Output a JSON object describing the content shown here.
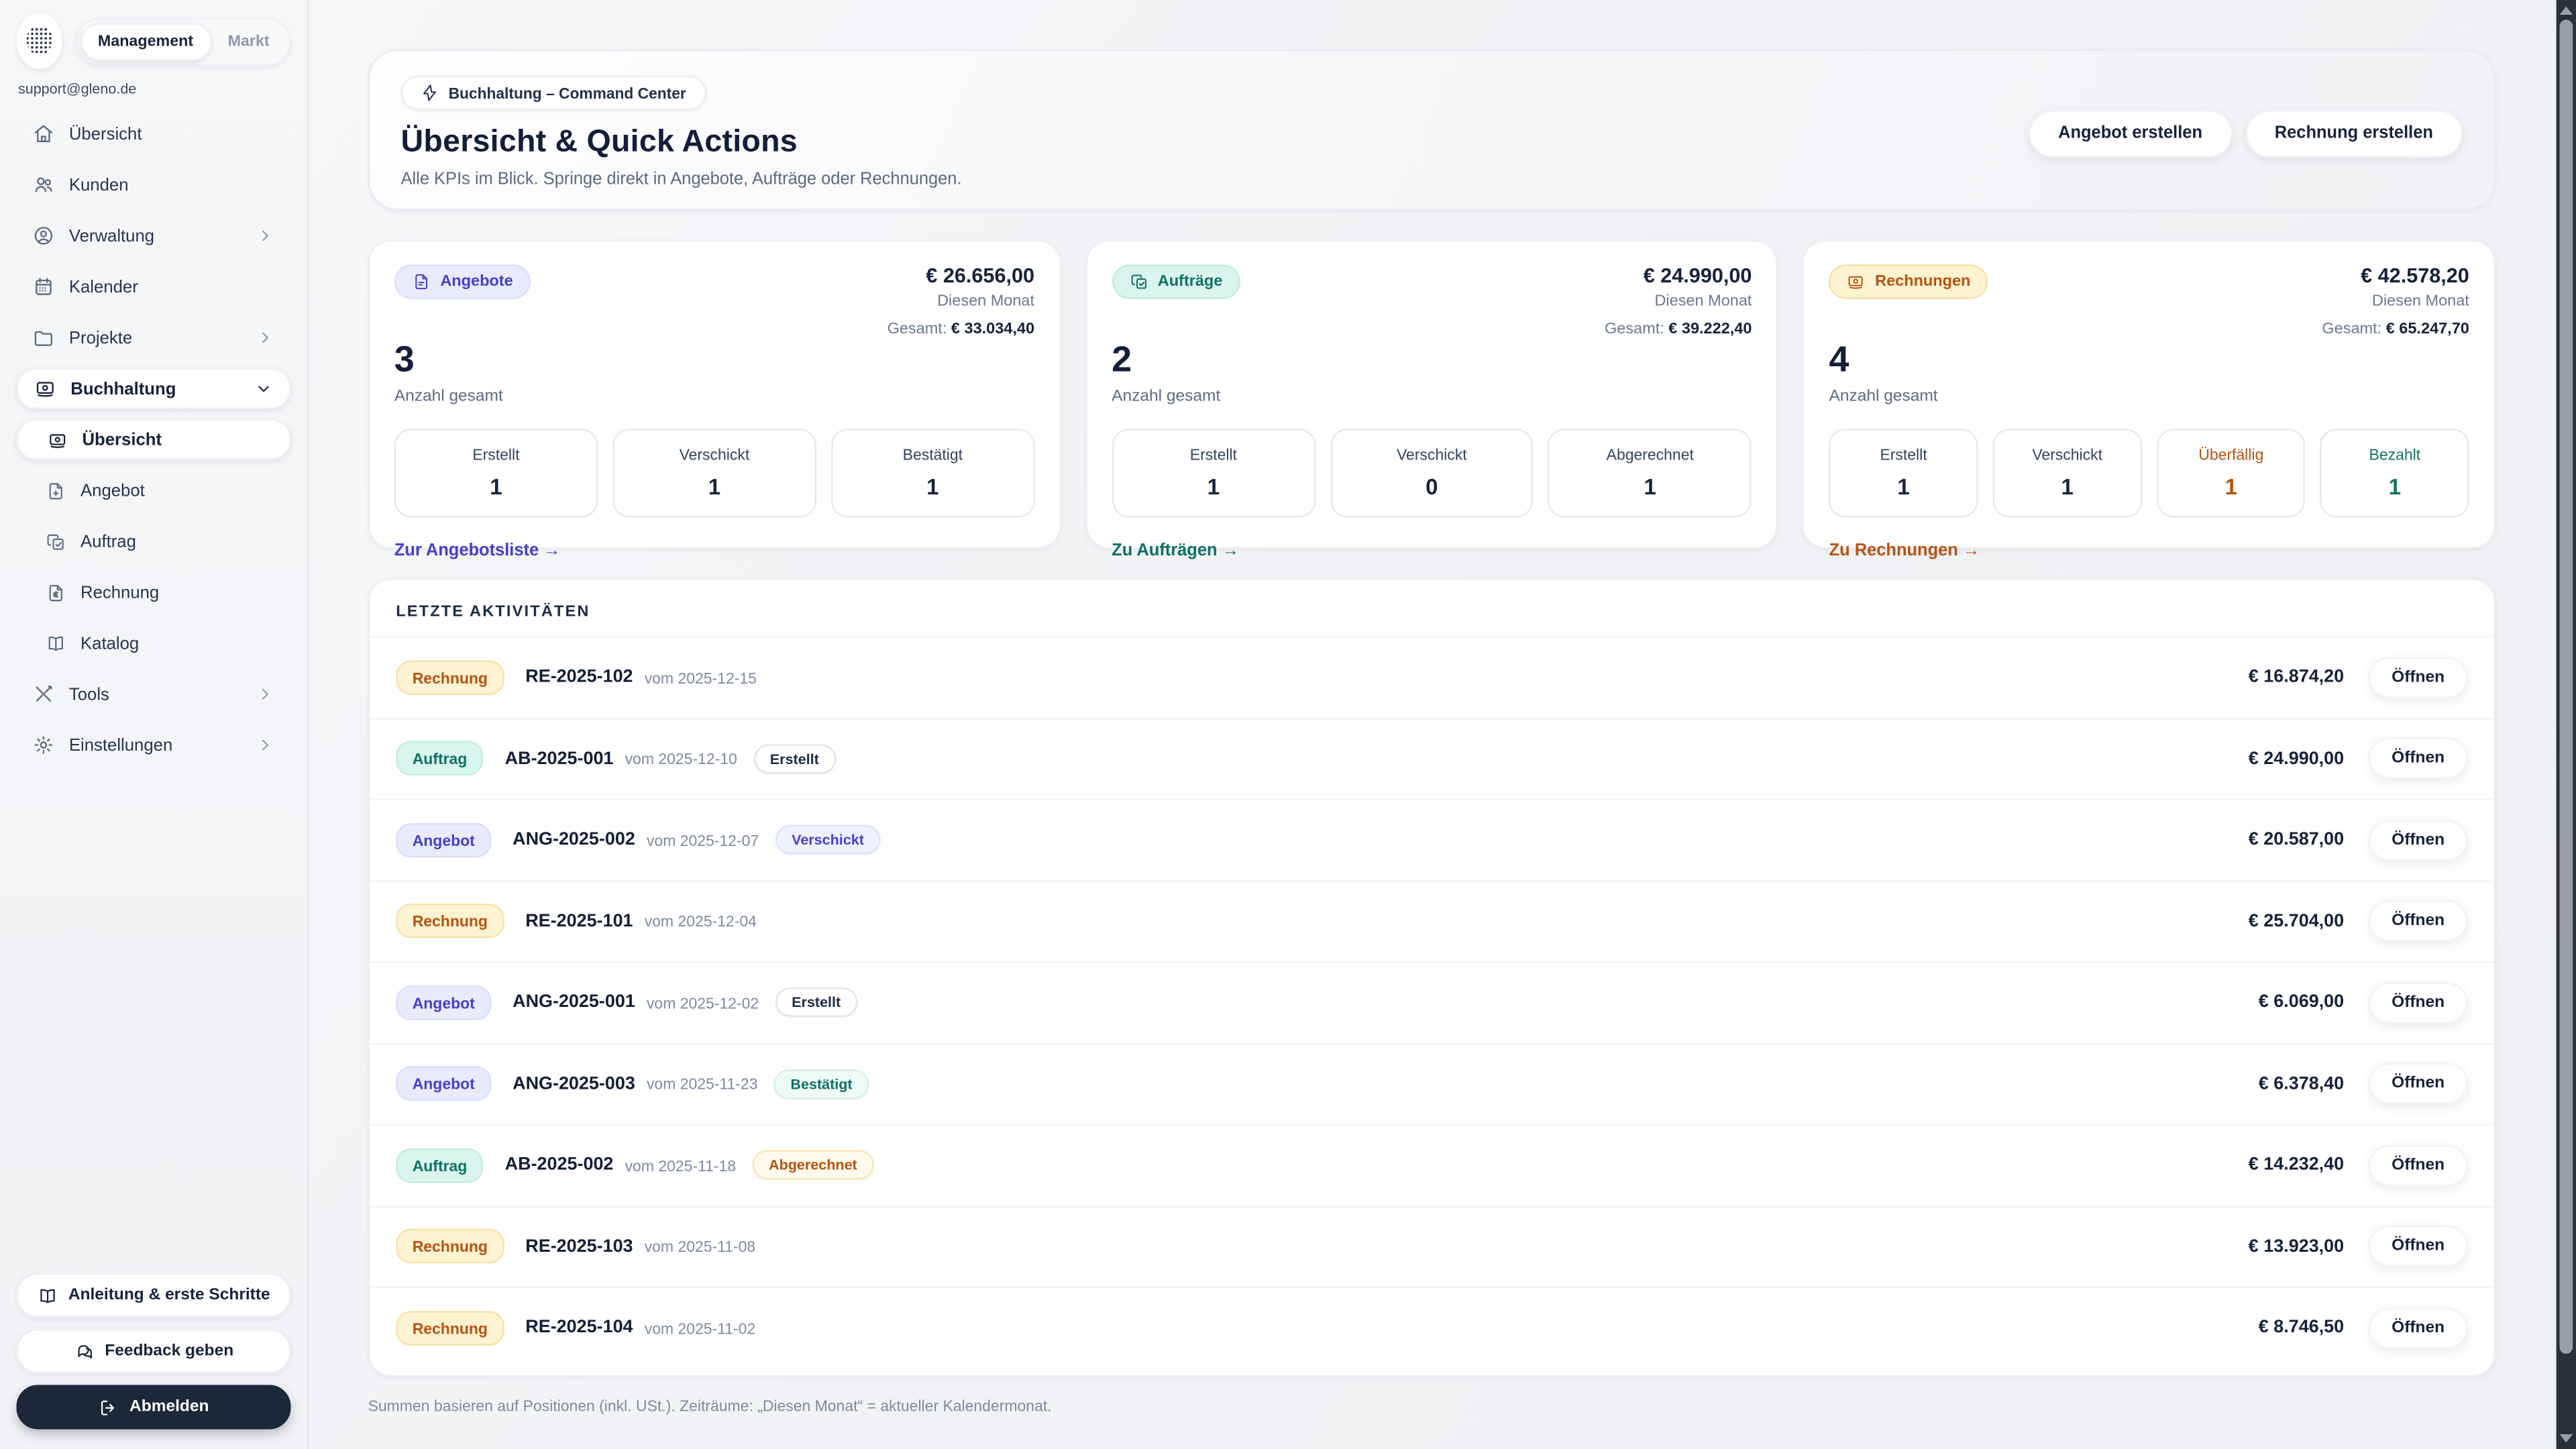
{
  "sidebar": {
    "tabs": [
      {
        "label": "Management",
        "active": true
      },
      {
        "label": "Markt",
        "active": false
      }
    ],
    "email": "support@gleno.de",
    "nav": [
      {
        "label": "Übersicht",
        "icon": "home-icon"
      },
      {
        "label": "Kunden",
        "icon": "users-icon"
      },
      {
        "label": "Verwaltung",
        "icon": "user-circle-icon",
        "chevron": "right"
      },
      {
        "label": "Kalender",
        "icon": "calendar-icon"
      },
      {
        "label": "Projekte",
        "icon": "folder-icon",
        "chevron": "right"
      },
      {
        "label": "Buchhaltung",
        "icon": "banknote-icon",
        "chevron": "down",
        "active": true
      }
    ],
    "subnav": [
      {
        "label": "Übersicht",
        "icon": "banknote-icon",
        "active": true
      },
      {
        "label": "Angebot",
        "icon": "file-plus-icon"
      },
      {
        "label": "Auftrag",
        "icon": "clipboard-check-icon"
      },
      {
        "label": "Rechnung",
        "icon": "file-euro-icon"
      },
      {
        "label": "Katalog",
        "icon": "book-icon"
      }
    ],
    "nav_after": [
      {
        "label": "Tools",
        "icon": "tools-icon",
        "chevron": "right"
      },
      {
        "label": "Einstellungen",
        "icon": "gear-icon",
        "chevron": "right"
      }
    ],
    "footer": [
      {
        "label": "Anleitung & erste Schritte",
        "icon": "book-open-icon",
        "style": "light"
      },
      {
        "label": "Feedback geben",
        "icon": "chat-icon",
        "style": "light"
      },
      {
        "label": "Abmelden",
        "icon": "logout-icon",
        "style": "dark"
      }
    ]
  },
  "header": {
    "badge_label": "Buchhaltung – Command Center",
    "badge_icon": "lightning-icon",
    "title": "Übersicht & Quick Actions",
    "subtitle": "Alle KPIs im Blick. Springe direkt in Angebote, Aufträge oder Rechnungen.",
    "actions": [
      {
        "label": "Angebot erstellen"
      },
      {
        "label": "Rechnung erstellen"
      }
    ]
  },
  "kpi_cards": [
    {
      "label": "Angebote",
      "icon": "file-text-icon",
      "theme": "indigo",
      "month_amount": "€ 26.656,00",
      "month_label": "Diesen Monat",
      "total_label": "Gesamt:",
      "total_amount": "€ 33.034,40",
      "count": "3",
      "count_label": "Anzahl gesamt",
      "stats": [
        {
          "label": "Erstellt",
          "value": "1"
        },
        {
          "label": "Verschickt",
          "value": "1"
        },
        {
          "label": "Bestätigt",
          "value": "1"
        }
      ],
      "link": "Zur Angebotsliste →"
    },
    {
      "label": "Aufträge",
      "icon": "clipboard-check-icon",
      "theme": "teal",
      "month_amount": "€ 24.990,00",
      "month_label": "Diesen Monat",
      "total_label": "Gesamt:",
      "total_amount": "€ 39.222,40",
      "count": "2",
      "count_label": "Anzahl gesamt",
      "stats": [
        {
          "label": "Erstellt",
          "value": "1"
        },
        {
          "label": "Verschickt",
          "value": "0"
        },
        {
          "label": "Abgerechnet",
          "value": "1"
        }
      ],
      "link": "Zu Aufträgen →"
    },
    {
      "label": "Rechnungen",
      "icon": "banknote-icon",
      "theme": "amber",
      "month_amount": "€ 42.578,20",
      "month_label": "Diesen Monat",
      "total_label": "Gesamt:",
      "total_amount": "€ 65.247,70",
      "count": "4",
      "count_label": "Anzahl gesamt",
      "stats": [
        {
          "label": "Erstellt",
          "value": "1"
        },
        {
          "label": "Verschickt",
          "value": "1"
        },
        {
          "label": "Überfällig",
          "value": "1",
          "theme": "amber"
        },
        {
          "label": "Bezahlt",
          "value": "1",
          "theme": "teal"
        }
      ],
      "link": "Zu Rechnungen →"
    }
  ],
  "activities": {
    "title": "LETZTE AKTIVITÄTEN",
    "open_label": "Öffnen",
    "rows": [
      {
        "type": "Rechnung",
        "theme": "amber",
        "id": "RE-2025-102",
        "date": "vom 2025-12-15",
        "status": null,
        "status_theme": null,
        "amount": "€ 16.874,20"
      },
      {
        "type": "Auftrag",
        "theme": "teal",
        "id": "AB-2025-001",
        "date": "vom 2025-12-10",
        "status": "Erstellt",
        "status_theme": "gray",
        "amount": "€ 24.990,00"
      },
      {
        "type": "Angebot",
        "theme": "indigo",
        "id": "ANG-2025-002",
        "date": "vom 2025-12-07",
        "status": "Verschickt",
        "status_theme": "indigo",
        "amount": "€ 20.587,00"
      },
      {
        "type": "Rechnung",
        "theme": "amber",
        "id": "RE-2025-101",
        "date": "vom 2025-12-04",
        "status": null,
        "status_theme": null,
        "amount": "€ 25.704,00"
      },
      {
        "type": "Angebot",
        "theme": "indigo",
        "id": "ANG-2025-001",
        "date": "vom 2025-12-02",
        "status": "Erstellt",
        "status_theme": "gray",
        "amount": "€ 6.069,00"
      },
      {
        "type": "Angebot",
        "theme": "indigo",
        "id": "ANG-2025-003",
        "date": "vom 2025-11-23",
        "status": "Bestätigt",
        "status_theme": "teal",
        "amount": "€ 6.378,40"
      },
      {
        "type": "Auftrag",
        "theme": "teal",
        "id": "AB-2025-002",
        "date": "vom 2025-11-18",
        "status": "Abgerechnet",
        "status_theme": "amber",
        "amount": "€ 14.232,40"
      },
      {
        "type": "Rechnung",
        "theme": "amber",
        "id": "RE-2025-103",
        "date": "vom 2025-11-08",
        "status": null,
        "status_theme": null,
        "amount": "€ 13.923,00"
      },
      {
        "type": "Rechnung",
        "theme": "amber",
        "id": "RE-2025-104",
        "date": "vom 2025-11-02",
        "status": null,
        "status_theme": null,
        "amount": "€ 8.746,50"
      }
    ]
  },
  "footer_note": "Summen basieren auf Positionen (inkl. USt.). Zeiträume: „Diesen Monat“ = aktueller Kalendermonat.",
  "themes": {
    "indigo": {
      "text": "#4741c9",
      "bg": "#e9ebfd",
      "border": "#dbdffb",
      "soft_bg": "#eef1fe",
      "soft_border": "#dde3fb"
    },
    "teal": {
      "text": "#0e7264",
      "bg": "#daf5ed",
      "border": "#c2ecdf",
      "soft_bg": "#effbf6",
      "soft_border": "#d4f1e6"
    },
    "amber": {
      "text": "#b75311",
      "bg": "#fdf3d1",
      "border": "#f6e2a9",
      "soft_bg": "#fffaec",
      "soft_border": "#f7e7b6"
    },
    "gray": {
      "text": "#1f2c49",
      "bg": "#ffffff",
      "border": "#e0e5ed",
      "soft_bg": "#ffffff",
      "soft_border": "#e0e5ed"
    }
  }
}
